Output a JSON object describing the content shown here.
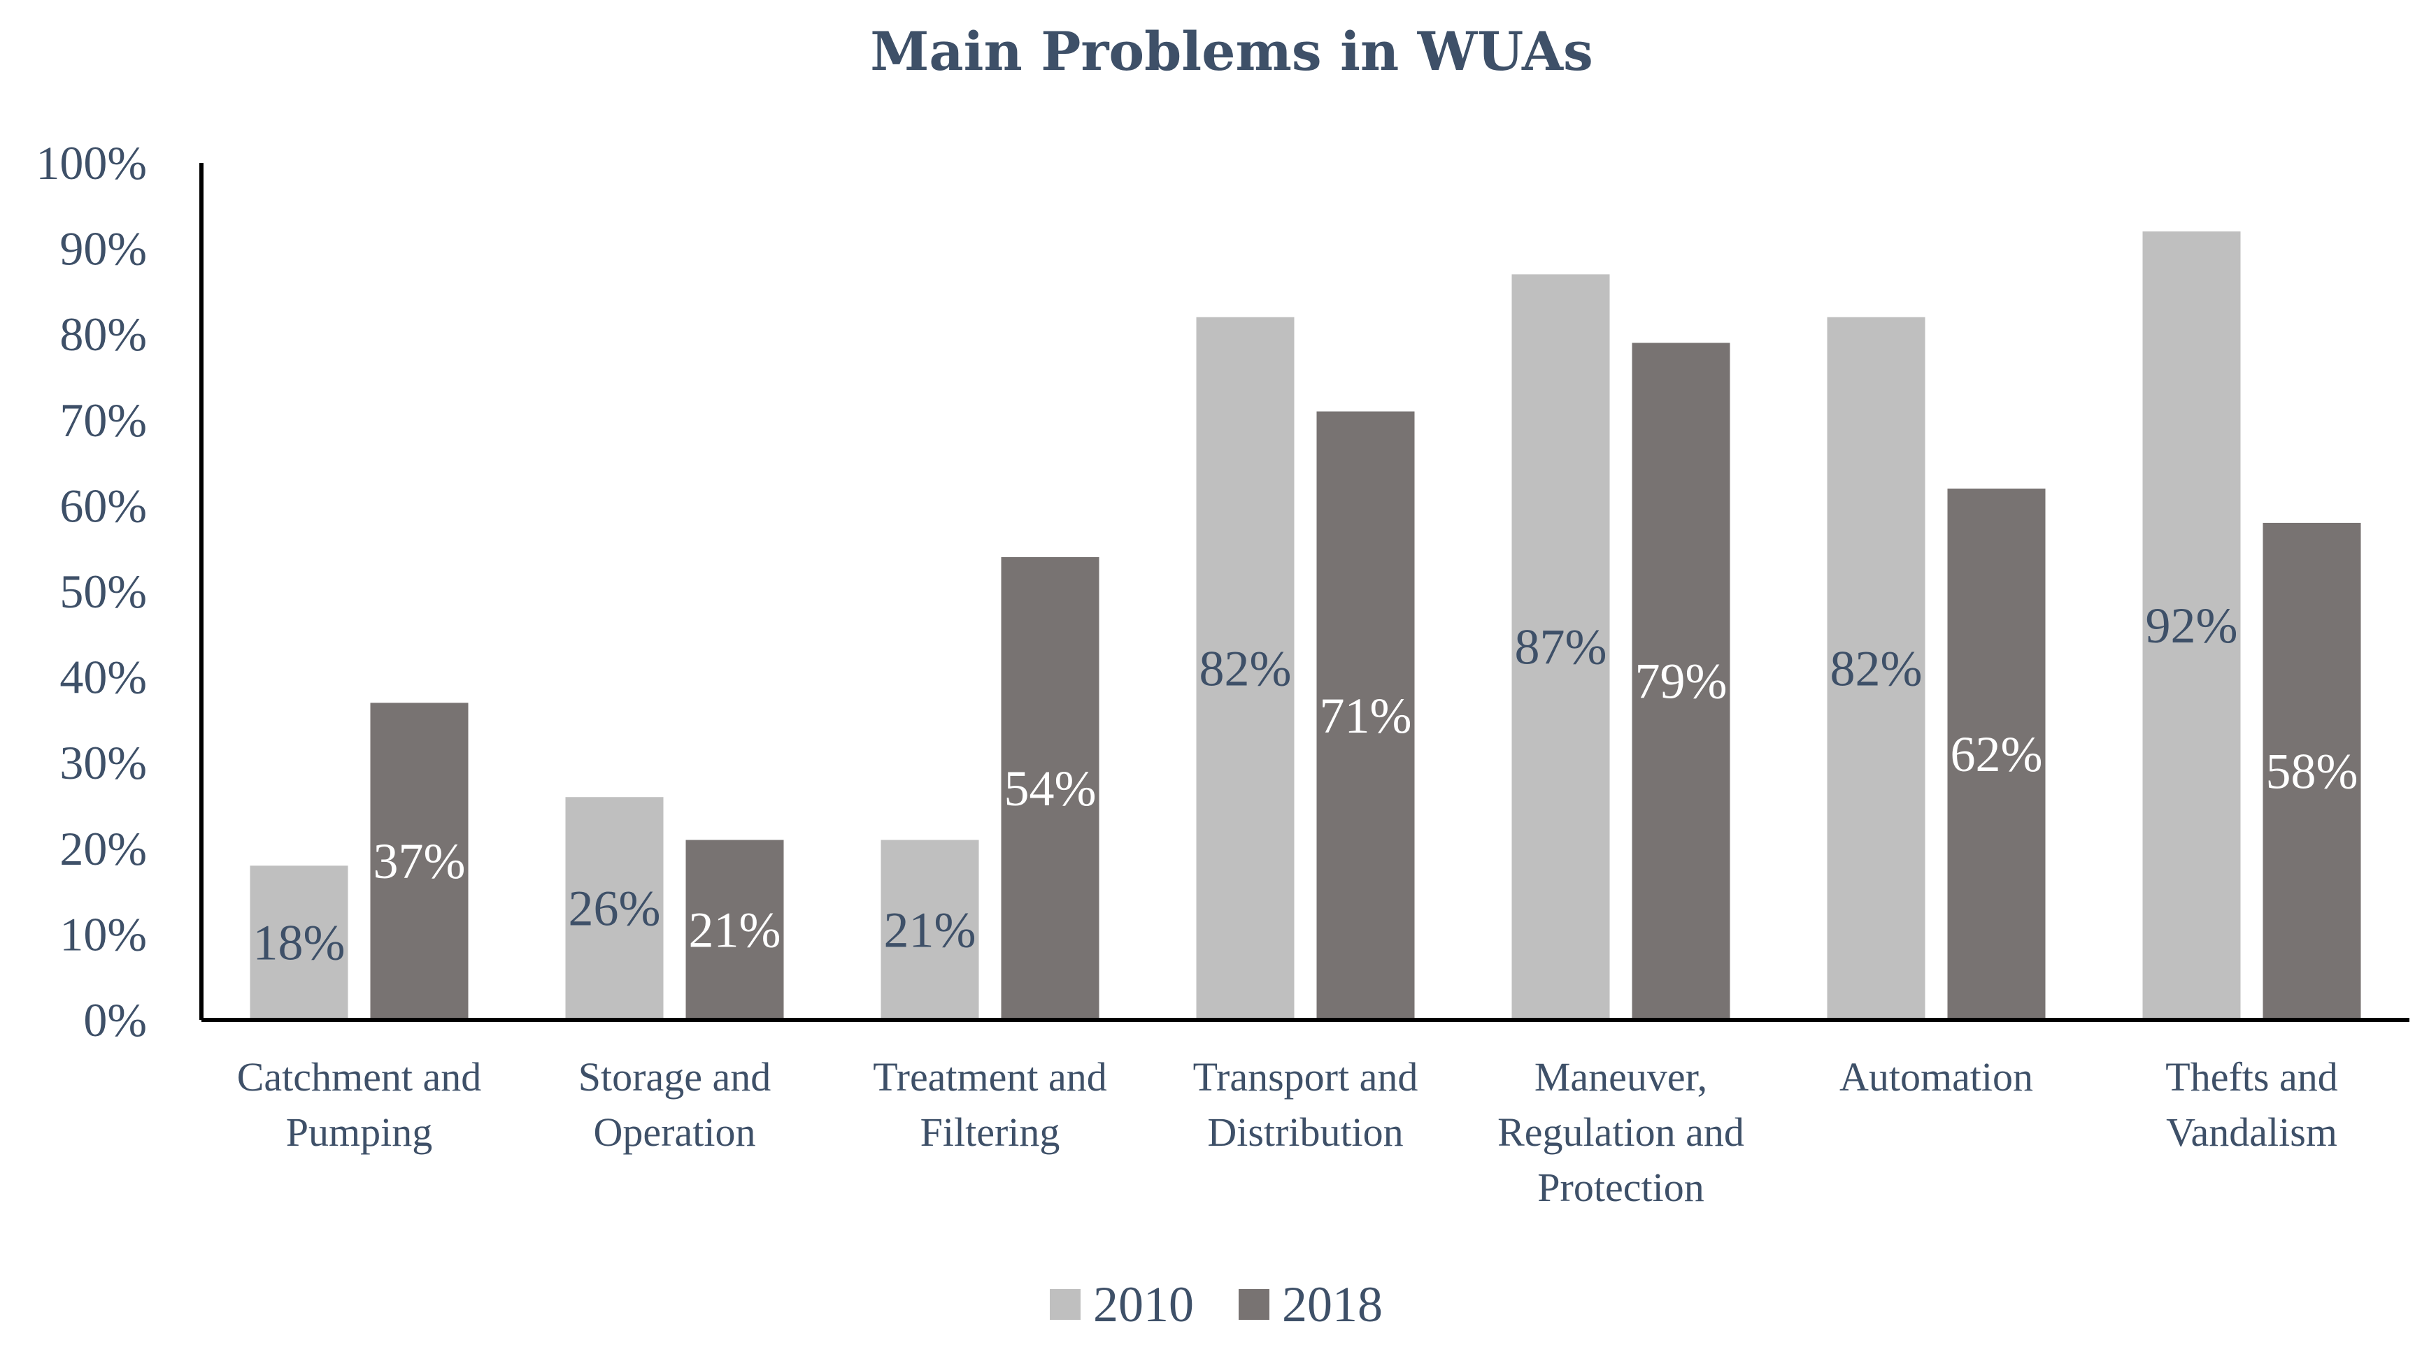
{
  "chart_data": {
    "type": "bar",
    "title": "Main Problems in WUAs",
    "xlabel": "",
    "ylabel": "",
    "ylim": [
      0,
      100
    ],
    "ytick_step": 10,
    "ytick_suffix": "%",
    "grid": false,
    "legend_position": "bottom",
    "categories": [
      [
        "Catchment and",
        "Pumping"
      ],
      [
        "Storage and",
        "Operation"
      ],
      [
        "Treatment and",
        "Filtering"
      ],
      [
        "Transport and",
        "Distribution"
      ],
      [
        "Maneuver,",
        "Regulation and",
        "Protection"
      ],
      [
        "Automation"
      ],
      [
        "Thefts and",
        "Vandalism"
      ]
    ],
    "series": [
      {
        "name": "2010",
        "color": "#bfbfbf",
        "label_color": "#3e5068",
        "values": [
          18,
          26,
          21,
          82,
          87,
          82,
          92
        ]
      },
      {
        "name": "2018",
        "color": "#787372",
        "label_color": "#ffffff",
        "values": [
          37,
          21,
          54,
          71,
          79,
          62,
          58
        ]
      }
    ],
    "value_suffix": "%"
  }
}
